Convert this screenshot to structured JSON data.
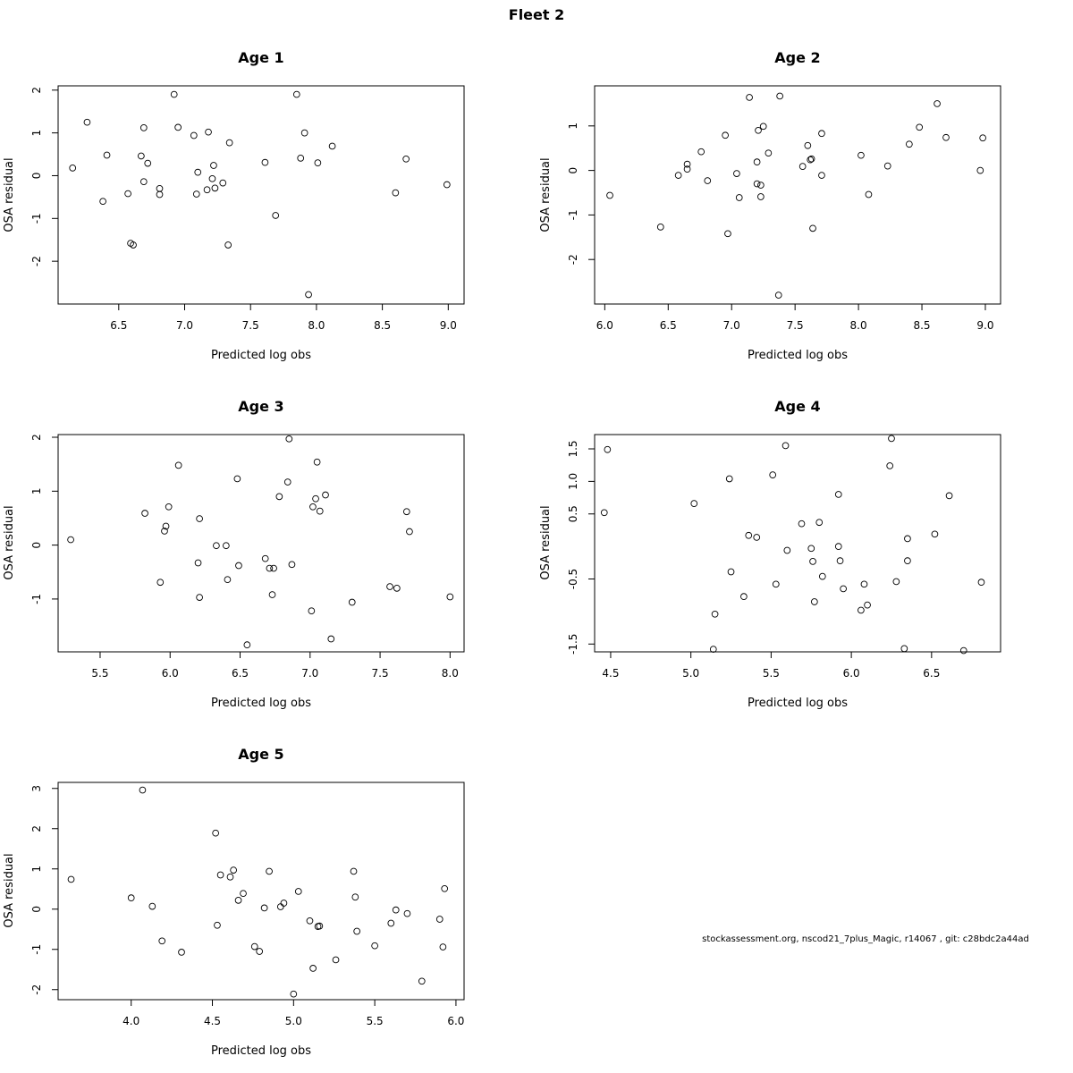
{
  "figure": {
    "title": "Fleet 2",
    "footer": "stockassessment.org, nscod21_7plus_Magic, r14067 , git: c28bdc2a44ad"
  },
  "chart_data": [
    {
      "type": "scatter",
      "title": "Age 1",
      "xlabel": "Predicted log obs",
      "ylabel": "OSA residual",
      "xlim": [
        6.04,
        9.12
      ],
      "ylim": [
        -3.0,
        2.1
      ],
      "xticks": [
        6.5,
        7.0,
        7.5,
        8.0,
        8.5,
        9.0
      ],
      "xtick_labels": [
        "6.5",
        "7.0",
        "7.5",
        "8.0",
        "8.5",
        "9.0"
      ],
      "yticks": [
        -2,
        -1,
        0,
        1,
        2
      ],
      "ytick_labels": [
        "-2",
        "-1",
        "0",
        "1",
        "2"
      ],
      "grid": false,
      "x": [
        6.15,
        6.26,
        6.38,
        6.41,
        6.57,
        6.59,
        6.61,
        6.67,
        6.69,
        6.69,
        6.72,
        6.81,
        6.81,
        6.92,
        6.95,
        7.07,
        7.09,
        7.1,
        7.17,
        7.18,
        7.21,
        7.22,
        7.23,
        7.29,
        7.33,
        7.34,
        7.61,
        7.69,
        7.85,
        7.88,
        7.91,
        7.94,
        8.01,
        8.12,
        8.6,
        8.68,
        8.99
      ],
      "y": [
        0.18,
        1.25,
        -0.6,
        0.48,
        -0.42,
        -1.58,
        -1.62,
        0.46,
        1.12,
        -0.14,
        0.29,
        -0.3,
        -0.44,
        1.9,
        1.13,
        0.94,
        -0.43,
        0.08,
        -0.33,
        1.02,
        -0.07,
        0.24,
        -0.29,
        -0.17,
        -1.62,
        0.77,
        0.31,
        -0.93,
        1.9,
        0.41,
        1.0,
        -2.78,
        0.3,
        0.69,
        -0.4,
        0.39,
        -0.21
      ]
    },
    {
      "type": "scatter",
      "title": "Age 2",
      "xlabel": "Predicted log obs",
      "ylabel": "OSA residual",
      "xlim": [
        5.92,
        9.12
      ],
      "ylim": [
        -3.0,
        1.9
      ],
      "xticks": [
        6.0,
        6.5,
        7.0,
        7.5,
        8.0,
        8.5,
        9.0
      ],
      "xtick_labels": [
        "6.0",
        "6.5",
        "7.0",
        "7.5",
        "8.0",
        "8.5",
        "9.0"
      ],
      "yticks": [
        -2,
        -1,
        0,
        1
      ],
      "ytick_labels": [
        "-2",
        "-1",
        "0",
        "1"
      ],
      "grid": false,
      "x": [
        6.04,
        6.44,
        6.58,
        6.65,
        6.65,
        6.76,
        6.81,
        6.95,
        6.97,
        7.04,
        7.06,
        7.14,
        7.2,
        7.2,
        7.21,
        7.23,
        7.23,
        7.25,
        7.29,
        7.37,
        7.38,
        7.56,
        7.6,
        7.62,
        7.63,
        7.64,
        7.71,
        7.71,
        8.02,
        8.08,
        8.23,
        8.4,
        8.48,
        8.62,
        8.69,
        8.96,
        8.98
      ],
      "y": [
        -0.56,
        -1.27,
        -0.11,
        0.14,
        0.03,
        0.42,
        -0.23,
        0.79,
        -1.42,
        -0.07,
        -0.61,
        1.64,
        0.19,
        -0.3,
        0.9,
        -0.33,
        -0.59,
        0.99,
        0.39,
        -2.8,
        1.67,
        0.09,
        0.56,
        0.24,
        0.26,
        -1.3,
        0.83,
        -0.11,
        0.34,
        -0.54,
        0.1,
        0.59,
        0.97,
        1.5,
        0.74,
        0.0,
        0.73
      ]
    },
    {
      "type": "scatter",
      "title": "Age 3",
      "xlabel": "Predicted log obs",
      "ylabel": "OSA residual",
      "xlim": [
        5.2,
        8.1
      ],
      "ylim": [
        -1.98,
        2.05
      ],
      "xticks": [
        5.5,
        6.0,
        6.5,
        7.0,
        7.5,
        8.0
      ],
      "xtick_labels": [
        "5.5",
        "6.0",
        "6.5",
        "7.0",
        "7.5",
        "8.0"
      ],
      "yticks": [
        -1,
        0,
        1,
        2
      ],
      "ytick_labels": [
        "-1",
        "0",
        "1",
        "2"
      ],
      "grid": false,
      "x": [
        5.29,
        5.82,
        5.93,
        5.96,
        5.97,
        5.99,
        6.06,
        6.2,
        6.21,
        6.21,
        6.33,
        6.4,
        6.41,
        6.48,
        6.49,
        6.55,
        6.68,
        6.71,
        6.73,
        6.74,
        6.78,
        6.84,
        6.85,
        6.87,
        7.01,
        7.02,
        7.04,
        7.05,
        7.07,
        7.11,
        7.15,
        7.3,
        7.57,
        7.62,
        7.69,
        7.71,
        8.0
      ],
      "y": [
        0.1,
        0.59,
        -0.69,
        0.26,
        0.35,
        0.71,
        1.48,
        -0.33,
        0.49,
        -0.97,
        -0.01,
        -0.01,
        -0.64,
        1.23,
        -0.38,
        -1.85,
        -0.25,
        -0.43,
        -0.92,
        -0.43,
        0.9,
        1.17,
        1.97,
        -0.36,
        -1.22,
        0.71,
        0.86,
        1.54,
        0.63,
        0.93,
        -1.74,
        -1.06,
        -0.77,
        -0.8,
        0.62,
        0.25,
        -0.96
      ]
    },
    {
      "type": "scatter",
      "title": "Age 4",
      "xlabel": "Predicted log obs",
      "ylabel": "OSA residual",
      "xlim": [
        4.4,
        6.93
      ],
      "ylim": [
        -1.62,
        1.72
      ],
      "xticks": [
        4.5,
        5.0,
        5.5,
        6.0,
        6.5
      ],
      "xtick_labels": [
        "4.5",
        "5.0",
        "5.5",
        "6.0",
        "6.5"
      ],
      "yticks": [
        -1.5,
        -0.5,
        0.5,
        1.0,
        1.5
      ],
      "ytick_labels": [
        "-1.5",
        "-0.5",
        "0.5",
        "1.0",
        "1.5"
      ],
      "grid": false,
      "x": [
        4.46,
        4.48,
        5.02,
        5.14,
        5.15,
        5.24,
        5.25,
        5.33,
        5.36,
        5.41,
        5.51,
        5.53,
        5.59,
        5.6,
        5.69,
        5.75,
        5.76,
        5.77,
        5.8,
        5.82,
        5.92,
        5.92,
        5.93,
        5.95,
        6.06,
        6.08,
        6.1,
        6.24,
        6.25,
        6.28,
        6.33,
        6.35,
        6.35,
        6.52,
        6.61,
        6.7,
        6.81
      ],
      "y": [
        0.52,
        1.49,
        0.66,
        -1.58,
        -1.04,
        1.04,
        -0.39,
        -0.77,
        0.17,
        0.14,
        1.1,
        -0.58,
        1.55,
        -0.06,
        0.35,
        -0.03,
        -0.23,
        -0.85,
        0.37,
        -0.46,
        0.8,
        0.0,
        -0.22,
        -0.65,
        -0.98,
        -0.58,
        -0.9,
        1.24,
        1.66,
        -0.54,
        -1.57,
        0.12,
        -0.22,
        0.19,
        0.78,
        -1.6,
        -0.55
      ]
    },
    {
      "type": "scatter",
      "title": "Age 5",
      "xlabel": "Predicted log obs",
      "ylabel": "OSA residual",
      "xlim": [
        3.55,
        6.05
      ],
      "ylim": [
        -2.25,
        3.15
      ],
      "xticks": [
        4.0,
        4.5,
        5.0,
        5.5,
        6.0
      ],
      "xtick_labels": [
        "4.0",
        "4.5",
        "5.0",
        "5.5",
        "6.0"
      ],
      "yticks": [
        -2,
        -1,
        0,
        1,
        2,
        3
      ],
      "ytick_labels": [
        "-2",
        "-1",
        "0",
        "1",
        "2",
        "3"
      ],
      "grid": false,
      "x": [
        3.63,
        4.0,
        4.07,
        4.13,
        4.19,
        4.31,
        4.52,
        4.53,
        4.55,
        4.61,
        4.63,
        4.66,
        4.69,
        4.76,
        4.79,
        4.82,
        4.85,
        4.92,
        4.94,
        5.0,
        5.03,
        5.1,
        5.12,
        5.15,
        5.16,
        5.26,
        5.37,
        5.38,
        5.39,
        5.5,
        5.6,
        5.63,
        5.7,
        5.79,
        5.9,
        5.92,
        5.93
      ],
      "y": [
        0.74,
        0.28,
        2.96,
        0.07,
        -0.79,
        -1.07,
        1.89,
        -0.4,
        0.85,
        0.8,
        0.97,
        0.22,
        0.39,
        -0.93,
        -1.05,
        0.03,
        0.94,
        0.06,
        0.15,
        -2.11,
        0.44,
        -0.29,
        -1.47,
        -0.43,
        -0.42,
        -1.26,
        0.94,
        0.3,
        -0.55,
        -0.91,
        -0.35,
        -0.02,
        -0.11,
        -1.79,
        -0.25,
        -0.94,
        0.51
      ]
    }
  ]
}
